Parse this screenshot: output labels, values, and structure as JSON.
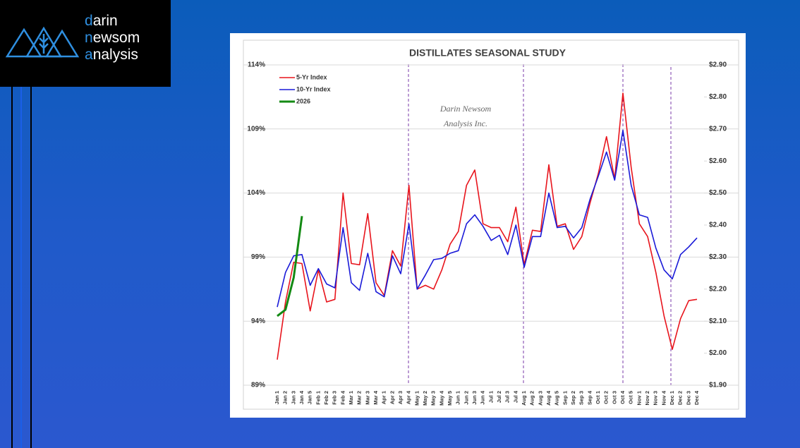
{
  "logo": [
    "darin",
    "newsom",
    "analysis"
  ],
  "chart_data": {
    "type": "line",
    "title": "DISTILLATES SEASONAL STUDY",
    "watermark": [
      "Darin Newsom",
      "Analysis Inc."
    ],
    "categories": [
      "Jan 1",
      "Jan 2",
      "Jan 3",
      "Jan 4",
      "Jan 5",
      "Feb 1",
      "Feb 2",
      "Feb 3",
      "Feb 4",
      "Mar 1",
      "Mar 2",
      "Mar 3",
      "Mar 4",
      "Apr 1",
      "Apr 2",
      "Apr 3",
      "Apr 4",
      "May 1",
      "May 2",
      "May 3",
      "May 4",
      "May 5",
      "Jun 1",
      "Jun 2",
      "Jun 3",
      "Jun 4",
      "Jul 1",
      "Jul 2",
      "Jul 3",
      "Jul 4",
      "Aug 1",
      "Aug 2",
      "Aug 3",
      "Aug 4",
      "Aug 5",
      "Sep 1",
      "Sep 2",
      "Sep 3",
      "Sep 4",
      "Oct 1",
      "Oct 2",
      "Oct 3",
      "Oct 4",
      "Oct 5",
      "Nov 1",
      "Nov 2",
      "Nov 3",
      "Nov 4",
      "Dec 1",
      "Dec 2",
      "Dec 3",
      "Dec 4"
    ],
    "series": [
      {
        "name": "5-Yr Index",
        "color": "#e8141c",
        "values": [
          91.0,
          95.5,
          98.6,
          98.5,
          94.8,
          98.0,
          95.5,
          95.7,
          104.0,
          98.5,
          98.4,
          102.4,
          97.0,
          96.0,
          99.5,
          98.3,
          104.6,
          96.5,
          96.8,
          96.5,
          98.0,
          100.0,
          101.0,
          104.6,
          105.8,
          101.6,
          101.3,
          101.3,
          100.2,
          102.9,
          98.4,
          101.1,
          101.0,
          106.2,
          101.4,
          101.6,
          99.6,
          100.6,
          103.2,
          105.5,
          108.4,
          105.1,
          111.8,
          106.0,
          101.6,
          100.6,
          97.8,
          94.4,
          91.8,
          94.2,
          95.6,
          95.7
        ]
      },
      {
        "name": "10-Yr Index",
        "color": "#1a1ad8",
        "values": [
          95.1,
          97.8,
          99.1,
          99.2,
          96.8,
          98.1,
          96.9,
          96.6,
          101.3,
          97.0,
          96.4,
          99.3,
          96.3,
          95.9,
          99.1,
          97.7,
          101.6,
          96.5,
          97.6,
          98.8,
          98.9,
          99.3,
          99.5,
          101.6,
          102.3,
          101.4,
          100.3,
          100.7,
          99.2,
          101.5,
          98.2,
          100.6,
          100.6,
          104.0,
          101.3,
          101.4,
          100.5,
          101.3,
          103.5,
          105.3,
          107.2,
          105.0,
          108.9,
          104.6,
          102.3,
          102.1,
          99.7,
          98.0,
          97.3,
          99.2,
          99.8,
          100.5
        ]
      },
      {
        "name": "2026",
        "color": "#138a13",
        "values": [
          94.4,
          94.9,
          97.4,
          102.2,
          null,
          null,
          null,
          null,
          null,
          null,
          null,
          null,
          null,
          null,
          null,
          null,
          null,
          null,
          null,
          null,
          null,
          null,
          null,
          null,
          null,
          null,
          null,
          null,
          null,
          null,
          null,
          null,
          null,
          null,
          null,
          null,
          null,
          null,
          null,
          null,
          null,
          null,
          null,
          null,
          null,
          null,
          null,
          null,
          null,
          null,
          null,
          null
        ]
      }
    ],
    "ylim": [
      89,
      114
    ],
    "yticks": [
      {
        "value": 89,
        "label": "89%"
      },
      {
        "value": 94,
        "label": "94%"
      },
      {
        "value": 99,
        "label": "99%"
      },
      {
        "value": 104,
        "label": "104%"
      },
      {
        "value": 109,
        "label": "109%"
      },
      {
        "value": 114,
        "label": "114%"
      }
    ],
    "y2lim": [
      1.9,
      2.9
    ],
    "y2ticks": [
      {
        "value": 1.9,
        "label": "$1.90"
      },
      {
        "value": 2.0,
        "label": "$2.00"
      },
      {
        "value": 2.1,
        "label": "$2.10"
      },
      {
        "value": 2.2,
        "label": "$2.20"
      },
      {
        "value": 2.3,
        "label": "$2.30"
      },
      {
        "value": 2.4,
        "label": "$2.40"
      },
      {
        "value": 2.5,
        "label": "$2.50"
      },
      {
        "value": 2.6,
        "label": "$2.60"
      },
      {
        "value": 2.7,
        "label": "$2.70"
      },
      {
        "value": 2.8,
        "label": "$2.80"
      },
      {
        "value": 2.9,
        "label": "$2.90"
      }
    ],
    "grid": true,
    "legend": "top-left"
  }
}
